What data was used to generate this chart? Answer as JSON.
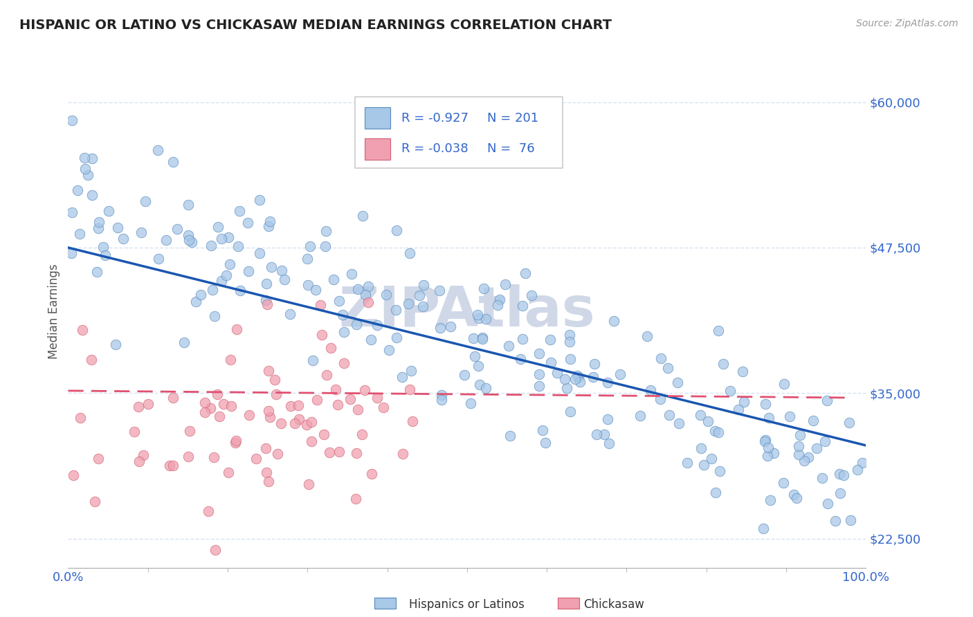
{
  "title": "HISPANIC OR LATINO VS CHICKASAW MEDIAN EARNINGS CORRELATION CHART",
  "source": "Source: ZipAtlas.com",
  "ylabel": "Median Earnings",
  "yticks": [
    22500,
    35000,
    47500,
    60000
  ],
  "ytick_labels": [
    "$22,500",
    "$35,000",
    "$47,500",
    "$60,000"
  ],
  "xlim": [
    0,
    1.0
  ],
  "ylim": [
    20000,
    64000
  ],
  "legend1_label": "Hispanics or Latinos",
  "legend2_label": "Chickasaw",
  "R1": "-0.927",
  "N1": "201",
  "R2": "-0.038",
  "N2": " 76",
  "blue_fill": "#a8c8e8",
  "blue_edge": "#5588bb",
  "pink_fill": "#f0a0b0",
  "pink_edge": "#d06070",
  "blue_line_color": "#1a56b0",
  "pink_line_color": "#e05070",
  "title_color": "#222222",
  "axis_color": "#3366cc",
  "bg_color": "#ffffff",
  "watermark_text": "ZIPAtlas",
  "watermark_color": "#d0d8e8",
  "blue_trend_x0": 0.0,
  "blue_trend_x1": 1.0,
  "blue_trend_y0": 47500,
  "blue_trend_y1": 30500,
  "pink_trend_x0": 0.0,
  "pink_trend_x1": 0.98,
  "pink_trend_y0": 35200,
  "pink_trend_y1": 34600,
  "xtick_minor_positions": [
    0.1,
    0.2,
    0.3,
    0.4,
    0.5,
    0.6,
    0.7,
    0.8,
    0.9
  ],
  "grid_color": "#ccddee",
  "grid_alpha": 0.8
}
